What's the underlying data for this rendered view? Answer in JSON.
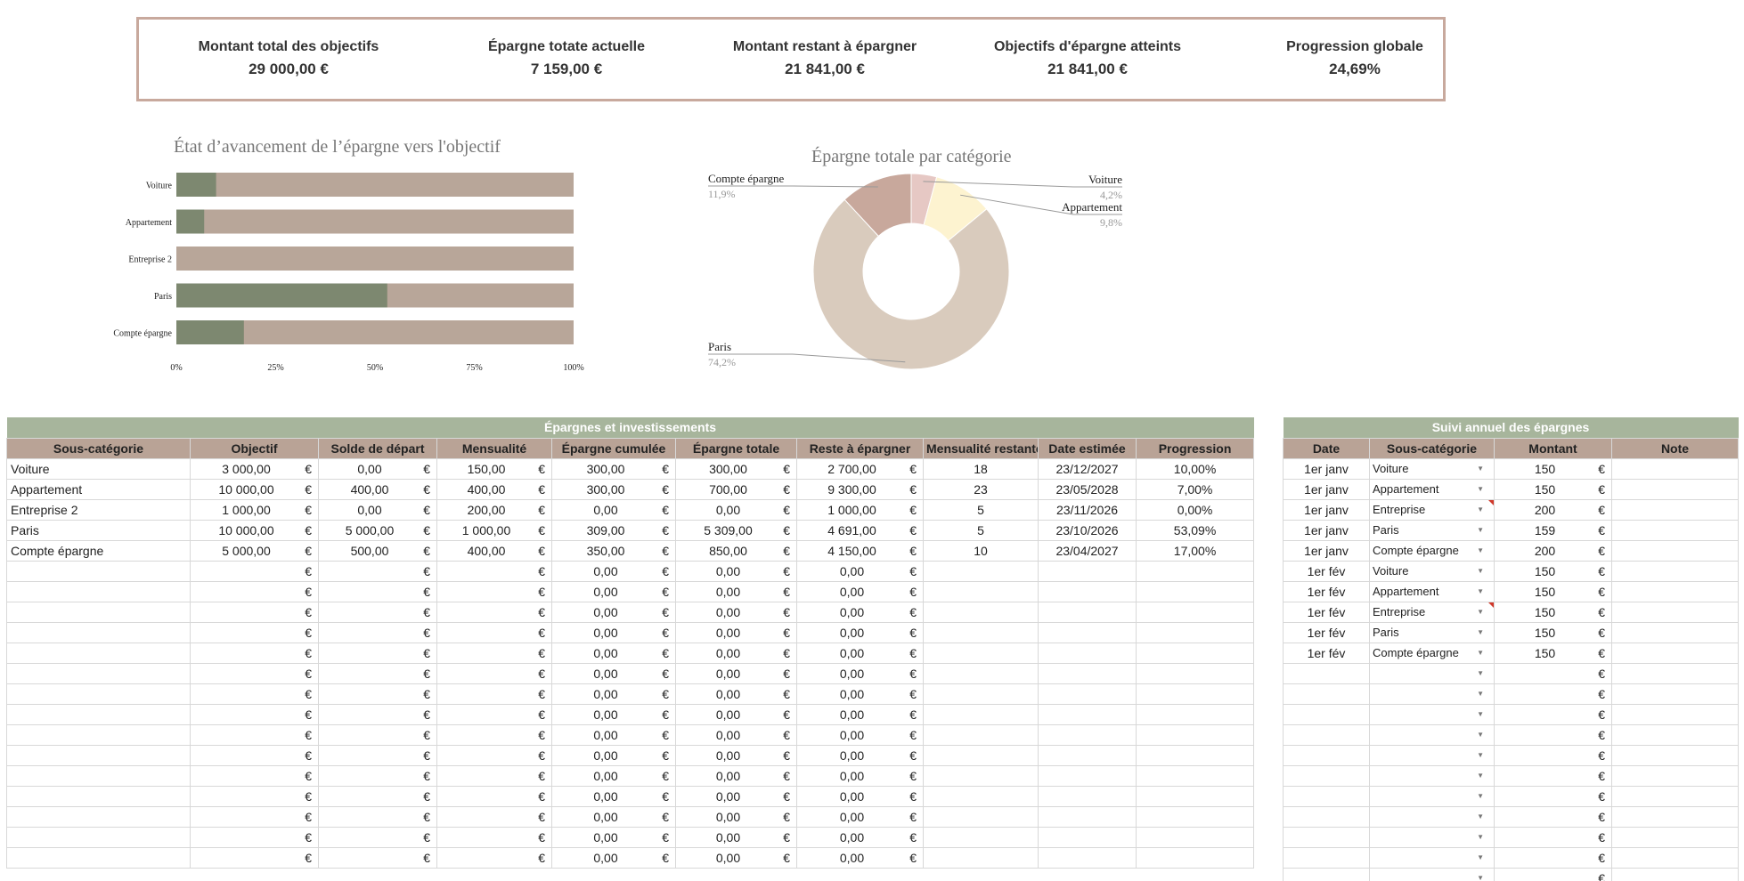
{
  "kpis": [
    {
      "label": "Montant total des objectifs",
      "value": "29 000,00 €"
    },
    {
      "label": "Épargne totate actuelle",
      "value": "7 159,00 €"
    },
    {
      "label": "Montant restant à épargner",
      "value": "21 841,00 €"
    },
    {
      "label": "Objectifs d'épargne atteints",
      "value": "21 841,00 €"
    },
    {
      "label": "Progression globale",
      "value": "24,69%"
    }
  ],
  "colors": {
    "accent_border": "#c8a99d",
    "bar_fill": "#7d8870",
    "bar_track": "#b8a699",
    "title_bg": "#a7b59c",
    "header_bg": "#b9a396"
  },
  "bar_chart": {
    "title": "État d’avancement de l’épargne vers l'objectif",
    "chart_data": {
      "type": "bar",
      "orientation": "horizontal",
      "categories": [
        "Voiture",
        "Appartement",
        "Entreprise 2",
        "Paris",
        "Compte épargne"
      ],
      "values": [
        0.1,
        0.07,
        0.0,
        0.5309,
        0.17
      ],
      "xlim": [
        0,
        1
      ],
      "xticks": [
        "0%",
        "25%",
        "50%",
        "75%",
        "100%"
      ]
    }
  },
  "donut_chart": {
    "title": "Épargne totale par catégorie",
    "chart_data": {
      "type": "pie",
      "donut": true,
      "slices": [
        {
          "label": "Voiture",
          "pct": "4,2%",
          "value": 4.2,
          "color": "#e6c8c4"
        },
        {
          "label": "Appartement",
          "pct": "9,8%",
          "value": 9.8,
          "color": "#fdf3d0"
        },
        {
          "label": "Paris",
          "pct": "74,2%",
          "value": 74.2,
          "color": "#d9cbbd"
        },
        {
          "label": "Compte épargne",
          "pct": "11,9%",
          "value": 11.9,
          "color": "#c8a89c"
        }
      ]
    }
  },
  "main_table": {
    "title": "Épargnes et investissements",
    "headers": [
      "Sous-catégorie",
      "Objectif",
      "Solde de départ",
      "Mensualité",
      "Épargne cumulée",
      "Épargne totale",
      "Reste à épargner",
      "Mensualité restante",
      "Date estimée",
      "Progression"
    ],
    "currency": "€",
    "rows": [
      [
        "Voiture",
        "3 000,00",
        "0,00",
        "150,00",
        "300,00",
        "300,00",
        "2 700,00",
        "18",
        "23/12/2027",
        "10,00%"
      ],
      [
        "Appartement",
        "10 000,00",
        "400,00",
        "400,00",
        "300,00",
        "700,00",
        "9 300,00",
        "23",
        "23/05/2028",
        "7,00%"
      ],
      [
        "Entreprise 2",
        "1 000,00",
        "0,00",
        "200,00",
        "0,00",
        "0,00",
        "1 000,00",
        "5",
        "23/11/2026",
        "0,00%"
      ],
      [
        "Paris",
        "10 000,00",
        "5 000,00",
        "1 000,00",
        "309,00",
        "5 309,00",
        "4 691,00",
        "5",
        "23/10/2026",
        "53,09%"
      ],
      [
        "Compte épargne",
        "5 000,00",
        "500,00",
        "400,00",
        "350,00",
        "850,00",
        "4 150,00",
        "10",
        "23/04/2027",
        "17,00%"
      ],
      [
        "",
        "",
        "",
        "",
        "0,00",
        "0,00",
        "0,00",
        "",
        "",
        ""
      ],
      [
        "",
        "",
        "",
        "",
        "0,00",
        "0,00",
        "0,00",
        "",
        "",
        ""
      ],
      [
        "",
        "",
        "",
        "",
        "0,00",
        "0,00",
        "0,00",
        "",
        "",
        ""
      ],
      [
        "",
        "",
        "",
        "",
        "0,00",
        "0,00",
        "0,00",
        "",
        "",
        ""
      ],
      [
        "",
        "",
        "",
        "",
        "0,00",
        "0,00",
        "0,00",
        "",
        "",
        ""
      ],
      [
        "",
        "",
        "",
        "",
        "0,00",
        "0,00",
        "0,00",
        "",
        "",
        ""
      ],
      [
        "",
        "",
        "",
        "",
        "0,00",
        "0,00",
        "0,00",
        "",
        "",
        ""
      ],
      [
        "",
        "",
        "",
        "",
        "0,00",
        "0,00",
        "0,00",
        "",
        "",
        ""
      ],
      [
        "",
        "",
        "",
        "",
        "0,00",
        "0,00",
        "0,00",
        "",
        "",
        ""
      ],
      [
        "",
        "",
        "",
        "",
        "0,00",
        "0,00",
        "0,00",
        "",
        "",
        ""
      ],
      [
        "",
        "",
        "",
        "",
        "0,00",
        "0,00",
        "0,00",
        "",
        "",
        ""
      ],
      [
        "",
        "",
        "",
        "",
        "0,00",
        "0,00",
        "0,00",
        "",
        "",
        ""
      ],
      [
        "",
        "",
        "",
        "",
        "0,00",
        "0,00",
        "0,00",
        "",
        "",
        ""
      ],
      [
        "",
        "",
        "",
        "",
        "0,00",
        "0,00",
        "0,00",
        "",
        "",
        ""
      ],
      [
        "",
        "",
        "",
        "",
        "0,00",
        "0,00",
        "0,00",
        "",
        "",
        ""
      ]
    ]
  },
  "side_table": {
    "title": "Suivi annuel des épargnes",
    "headers": [
      "Date",
      "Sous-catégorie",
      "Montant",
      "Note"
    ],
    "currency": "€",
    "rows": [
      {
        "date": "1er janv",
        "sub": "Voiture",
        "amount": "150",
        "flag": false
      },
      {
        "date": "1er janv",
        "sub": "Appartement",
        "amount": "150",
        "flag": false
      },
      {
        "date": "1er janv",
        "sub": "Entreprise",
        "amount": "200",
        "flag": true
      },
      {
        "date": "1er janv",
        "sub": "Paris",
        "amount": "159",
        "flag": false
      },
      {
        "date": "1er janv",
        "sub": "Compte épargne",
        "amount": "200",
        "flag": false
      },
      {
        "date": "1er fév",
        "sub": "Voiture",
        "amount": "150",
        "flag": false
      },
      {
        "date": "1er fév",
        "sub": "Appartement",
        "amount": "150",
        "flag": false
      },
      {
        "date": "1er fév",
        "sub": "Entreprise",
        "amount": "150",
        "flag": true
      },
      {
        "date": "1er fév",
        "sub": "Paris",
        "amount": "150",
        "flag": false
      },
      {
        "date": "1er fév",
        "sub": "Compte épargne",
        "amount": "150",
        "flag": false
      },
      {
        "date": "",
        "sub": "",
        "amount": "",
        "flag": false
      },
      {
        "date": "",
        "sub": "",
        "amount": "",
        "flag": false
      },
      {
        "date": "",
        "sub": "",
        "amount": "",
        "flag": false
      },
      {
        "date": "",
        "sub": "",
        "amount": "",
        "flag": false
      },
      {
        "date": "",
        "sub": "",
        "amount": "",
        "flag": false
      },
      {
        "date": "",
        "sub": "",
        "amount": "",
        "flag": false
      },
      {
        "date": "",
        "sub": "",
        "amount": "",
        "flag": false
      },
      {
        "date": "",
        "sub": "",
        "amount": "",
        "flag": false
      },
      {
        "date": "",
        "sub": "",
        "amount": "",
        "flag": false
      },
      {
        "date": "",
        "sub": "",
        "amount": "",
        "flag": false
      },
      {
        "date": "",
        "sub": "",
        "amount": "",
        "flag": false
      }
    ]
  }
}
